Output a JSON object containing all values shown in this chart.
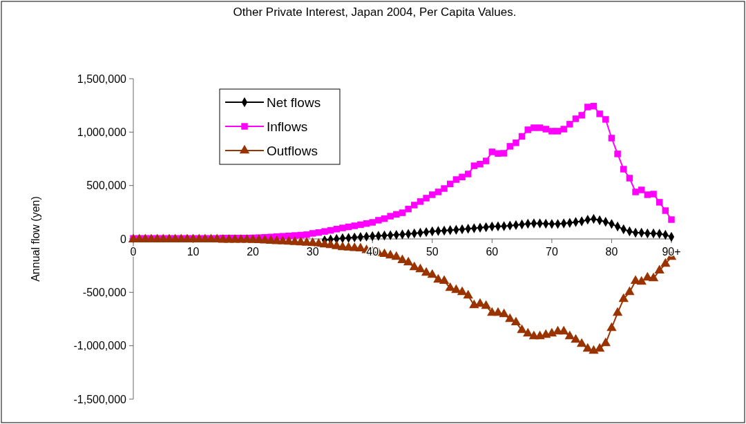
{
  "chart_data": {
    "type": "line",
    "title": "Other Private Interest, Japan 2004, Per Capita Values.",
    "ylabel": "Annual flow (yen)",
    "categories": [
      "0",
      null,
      null,
      null,
      null,
      null,
      null,
      null,
      null,
      null,
      "10",
      null,
      null,
      null,
      null,
      null,
      null,
      null,
      null,
      null,
      "20",
      null,
      null,
      null,
      null,
      null,
      null,
      null,
      null,
      null,
      "30",
      null,
      null,
      null,
      null,
      null,
      null,
      null,
      null,
      null,
      "40",
      null,
      null,
      null,
      null,
      null,
      null,
      null,
      null,
      null,
      "50",
      null,
      null,
      null,
      null,
      null,
      null,
      null,
      null,
      null,
      "60",
      null,
      null,
      null,
      null,
      null,
      null,
      null,
      null,
      null,
      "70",
      null,
      null,
      null,
      null,
      null,
      null,
      null,
      null,
      null,
      "80",
      null,
      null,
      null,
      null,
      null,
      null,
      null,
      null,
      null,
      "90+"
    ],
    "ylim": [
      -1500000,
      1500000
    ],
    "yticks": [
      {
        "value": -1500000,
        "label": "-1,500,000"
      },
      {
        "value": -1000000,
        "label": "-1,000,000"
      },
      {
        "value": -500000,
        "label": "-500,000"
      },
      0,
      {
        "value": 500000,
        "label": "500,000"
      },
      {
        "value": 1000000,
        "label": "1,000,000"
      },
      {
        "value": 1500000,
        "label": "1,500,000"
      }
    ],
    "legend": "top left",
    "grid": false,
    "series": [
      {
        "name": "Net flows",
        "color": "#000000",
        "marker": "diamond",
        "values": [
          null,
          null,
          null,
          null,
          null,
          null,
          null,
          null,
          null,
          null,
          null,
          null,
          null,
          null,
          null,
          null,
          null,
          null,
          null,
          null,
          null,
          null,
          null,
          null,
          null,
          null,
          null,
          null,
          null,
          null,
          null,
          null,
          -12000,
          -5000,
          0,
          6000,
          10000,
          14000,
          18000,
          22000,
          26000,
          29000,
          32000,
          35000,
          38000,
          42000,
          47000,
          52000,
          58000,
          64000,
          71000,
          74000,
          78000,
          82000,
          86000,
          90000,
          95000,
          100000,
          105000,
          110000,
          116000,
          118000,
          120000,
          125000,
          130000,
          136000,
          142000,
          145000,
          145000,
          142000,
          140000,
          140000,
          145000,
          150000,
          158000,
          165000,
          180000,
          188000,
          175000,
          160000,
          140000,
          116000,
          90000,
          71000,
          58000,
          58000,
          52000,
          52000,
          48000,
          39000,
          19000
        ]
      },
      {
        "name": "Inflows",
        "color": "#ff00ff",
        "marker": "square",
        "values": [
          5000,
          5000,
          5000,
          5000,
          5000,
          5000,
          5000,
          5000,
          5000,
          5000,
          5000,
          5000,
          5000,
          5000,
          5000,
          8000,
          8000,
          8000,
          8000,
          8000,
          10000,
          12000,
          15000,
          18000,
          22000,
          25000,
          28000,
          32000,
          36000,
          40000,
          52000,
          60000,
          70000,
          80000,
          92000,
          103000,
          113000,
          123000,
          133000,
          144000,
          155000,
          175000,
          190000,
          213000,
          230000,
          245000,
          280000,
          317000,
          350000,
          382000,
          414000,
          440000,
          472000,
          515000,
          556000,
          580000,
          608000,
          685000,
          700000,
          730000,
          815000,
          800000,
          802000,
          867000,
          900000,
          960000,
          1022000,
          1041000,
          1041000,
          1028000,
          1009000,
          1009000,
          1028000,
          1074000,
          1125000,
          1158000,
          1235000,
          1243000,
          1171000,
          1119000,
          944000,
          796000,
          653000,
          569000,
          440000,
          459000,
          414000,
          420000,
          343000,
          265000,
          181000
        ]
      },
      {
        "name": "Outflows",
        "color": "#993300",
        "marker": "triangle",
        "values": [
          -5000,
          -5000,
          -5000,
          -5000,
          -5000,
          -5000,
          -5000,
          -5000,
          -5000,
          -5000,
          -5000,
          -5000,
          -5000,
          -5000,
          -5000,
          -8000,
          -8000,
          -8000,
          -8000,
          -8000,
          -10000,
          -12000,
          -15000,
          -18000,
          -21000,
          -24000,
          -27000,
          -30000,
          -33000,
          -36000,
          -40000,
          -46000,
          -52000,
          -58000,
          -68000,
          -78000,
          -82000,
          -86000,
          -90000,
          -105000,
          -123000,
          -132000,
          -142000,
          -155000,
          -168000,
          -200000,
          -220000,
          -265000,
          -285000,
          -317000,
          -336000,
          -382000,
          -394000,
          -459000,
          -479000,
          -498000,
          -530000,
          -621000,
          -608000,
          -627000,
          -692000,
          -692000,
          -705000,
          -750000,
          -782000,
          -854000,
          -886000,
          -912000,
          -912000,
          -899000,
          -886000,
          -867000,
          -867000,
          -912000,
          -944000,
          -983000,
          -1028000,
          -1048000,
          -1028000,
          -977000,
          -834000,
          -692000,
          -563000,
          -498000,
          -394000,
          -401000,
          -362000,
          -369000,
          -297000,
          -233000,
          -168000
        ]
      }
    ]
  }
}
